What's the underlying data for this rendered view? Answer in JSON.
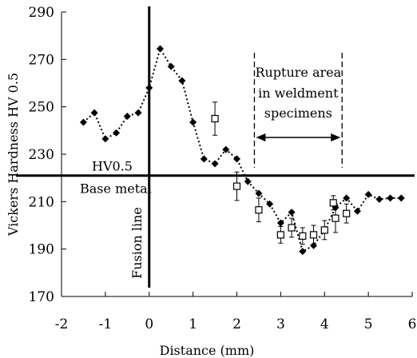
{
  "chart_data": {
    "type": "scatter",
    "title": "",
    "xlabel": "Distance (mm)",
    "ylabel": "Vickers Hardness HV 0.5",
    "xlim": [
      -2,
      6
    ],
    "ylim": [
      170,
      290
    ],
    "xticks": [
      "-2",
      "-1",
      "0",
      "1",
      "2",
      "3",
      "4",
      "5",
      "6"
    ],
    "yticks": [
      "170",
      "190",
      "210",
      "230",
      "250",
      "270",
      "290"
    ],
    "grid": false,
    "legend": "none",
    "series": [
      {
        "marker": "filled-diamond",
        "line": "dotted",
        "color": "#000000",
        "x": [
          -1.5,
          -1.25,
          -1.0,
          -0.75,
          -0.5,
          -0.25,
          0.0,
          0.25,
          0.5,
          0.75,
          1.0,
          1.25,
          1.5,
          1.75,
          2.0,
          2.25,
          2.5,
          2.75,
          3.0,
          3.25,
          3.5,
          3.75,
          4.0,
          4.25,
          4.5,
          4.75,
          5.0,
          5.25,
          5.5,
          5.75
        ],
        "y": [
          243.5,
          247.5,
          236.5,
          239,
          246,
          247.5,
          258,
          274.5,
          267,
          261,
          243.5,
          228,
          226,
          232,
          228,
          218.5,
          213.5,
          209,
          201,
          205.5,
          189,
          191.5,
          198,
          207.5,
          211.5,
          206,
          213,
          211,
          211.5,
          211.5
        ]
      },
      {
        "marker": "open-square",
        "line": "none",
        "color": "#000000",
        "x": [
          1.5,
          2.0,
          2.5,
          3.0,
          3.25,
          3.5,
          3.75,
          4.0,
          4.25,
          4.5
        ],
        "y": [
          245,
          216.5,
          206.5,
          196,
          199,
          195.5,
          196,
          198,
          203,
          205
        ],
        "err": [
          7,
          6,
          5,
          3.5,
          4,
          3.5,
          4,
          4,
          6,
          4
        ]
      },
      {
        "marker": "open-square",
        "line": "none",
        "color": "#000000",
        "x": [
          4.2
        ],
        "y": [
          209.5
        ],
        "err": [
          3
        ]
      }
    ],
    "reference_lines": [
      {
        "orientation": "vertical",
        "x": 0,
        "label": "Fusion line"
      },
      {
        "orientation": "horizontal",
        "y": 221,
        "label_top": "HV0.5",
        "label_bottom": "Base metal"
      }
    ],
    "rupture_area": {
      "x_start": 2.4,
      "x_end": 4.4,
      "label_lines": [
        "Rupture area",
        "in weldment",
        "specimens"
      ]
    }
  }
}
